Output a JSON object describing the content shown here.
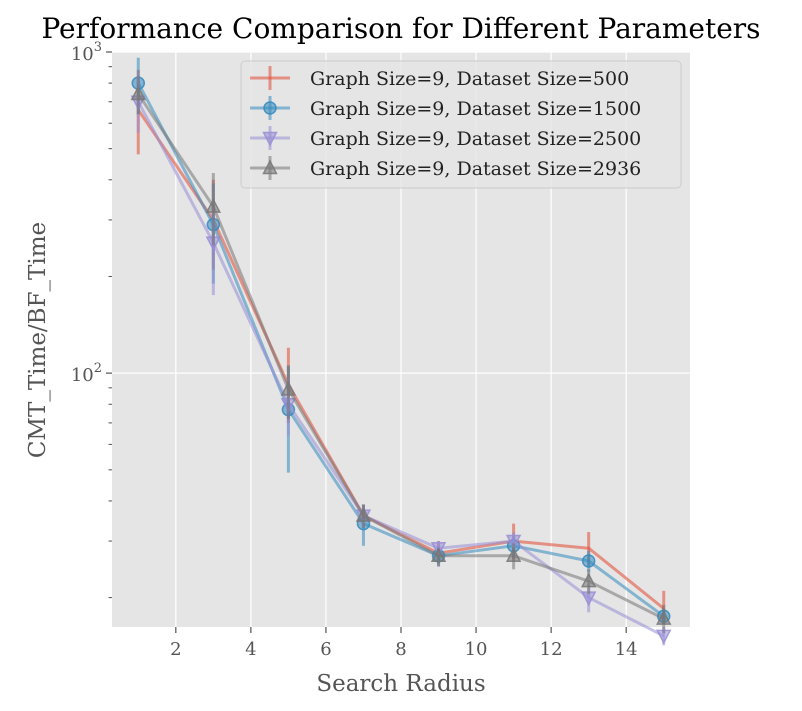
{
  "chart_data": {
    "type": "line",
    "title": "Performance Comparison for Different Parameters",
    "xlabel": "Search Radius",
    "ylabel": "CMT_Time/BF_Time",
    "xlim": [
      0.3,
      15.7
    ],
    "ylim": [
      16.2,
      1000
    ],
    "yscale": "log",
    "grid": true,
    "legend_position": "top-right",
    "x_ticks": [
      2,
      4,
      6,
      8,
      10,
      12,
      14
    ],
    "x_tick_labels": [
      "2",
      "4",
      "6",
      "8",
      "10",
      "12",
      "14"
    ],
    "y_ticks": [
      100,
      1000
    ],
    "y_tick_base": "10",
    "y_tick_exponents": [
      "2",
      "3"
    ],
    "x": [
      1,
      3,
      5,
      7,
      9,
      11,
      13,
      15
    ],
    "series": [
      {
        "name": "Graph Size=9, Dataset Size=500",
        "color": "#E24A33",
        "marker": "none",
        "values": [
          660,
          300,
          92,
          36,
          27.5,
          30,
          28.5,
          18.5
        ],
        "err_low": [
          480,
          210,
          70,
          33,
          25,
          26,
          25,
          16.5
        ],
        "err_high": [
          880,
          400,
          120,
          39,
          30,
          34,
          32,
          21
        ]
      },
      {
        "name": "Graph Size=9, Dataset Size=1500",
        "color": "#348ABD",
        "marker": "circle",
        "values": [
          800,
          290,
          77,
          34,
          27,
          29,
          26,
          17.5
        ],
        "err_low": [
          640,
          190,
          49,
          29,
          25,
          26.5,
          24,
          16.5
        ],
        "err_high": [
          960,
          390,
          105,
          39,
          29,
          31,
          28,
          18.5
        ]
      },
      {
        "name": "Graph Size=9, Dataset Size=2500",
        "color": "#988ED5",
        "marker": "triangle-down",
        "values": [
          700,
          255,
          80,
          36,
          28.5,
          30,
          20,
          15.2
        ],
        "err_low": [
          560,
          175,
          64,
          33,
          27,
          28,
          18,
          14.2
        ],
        "err_high": [
          840,
          335,
          96,
          39,
          30,
          32,
          22,
          16.2
        ]
      },
      {
        "name": "Graph Size=9, Dataset Size=2936",
        "color": "#777777",
        "marker": "triangle-up",
        "values": [
          740,
          330,
          89,
          36,
          27,
          27,
          22.5,
          17.2
        ],
        "err_low": [
          640,
          250,
          72,
          33,
          25.5,
          24.5,
          20.5,
          15.5
        ],
        "err_high": [
          840,
          420,
          106,
          39,
          28.5,
          29.5,
          24.5,
          19
        ]
      }
    ]
  }
}
